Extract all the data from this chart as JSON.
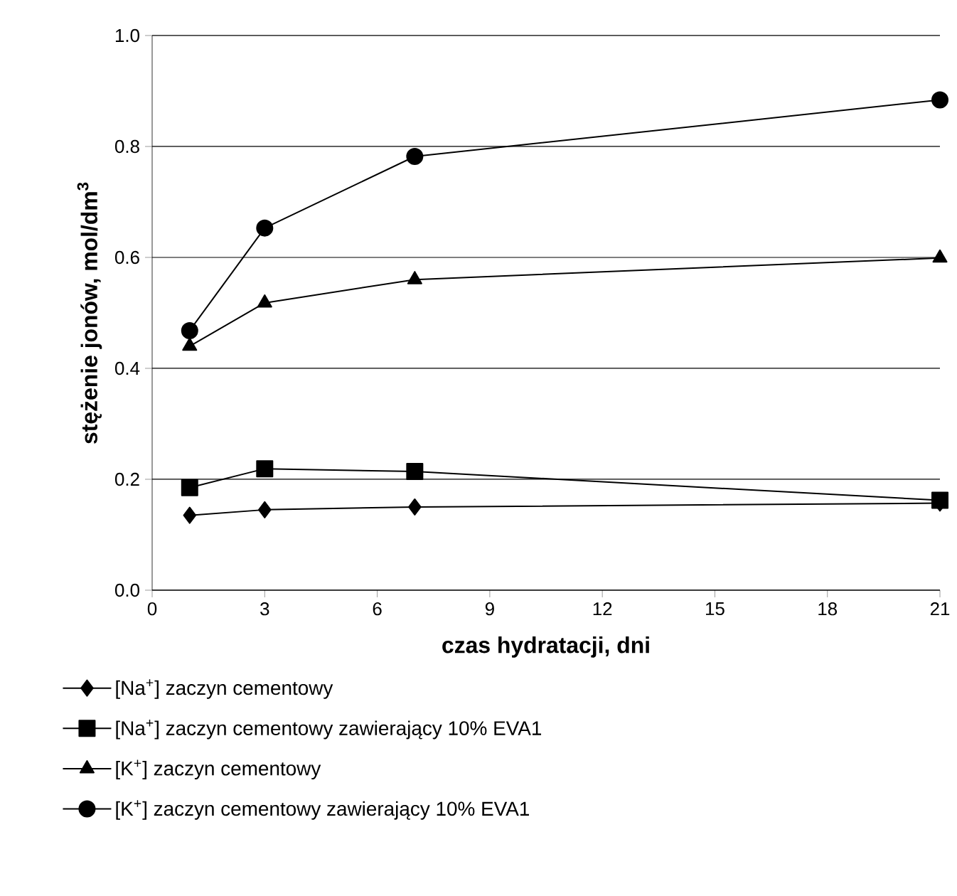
{
  "chart_data": {
    "type": "line",
    "xlabel": "czas hydratacji, dni",
    "ylabel": "stężenie jonów, mol/dm$^{3}$",
    "x": [
      1,
      3,
      7,
      21
    ],
    "series": [
      {
        "name": "[Na$^{+}$] zaczyn cementowy",
        "color": "#000000",
        "marker": "diamond",
        "values": [
          0.135,
          0.145,
          0.15,
          0.157
        ]
      },
      {
        "name": "[Na$^{+}$] zaczyn cementowy zawierający 10% EVA1",
        "color": "#000000",
        "marker": "square",
        "values": [
          0.185,
          0.219,
          0.214,
          0.162
        ]
      },
      {
        "name": "[K$^{+}$] zaczyn cementowy",
        "color": "#000000",
        "marker": "triangle",
        "values": [
          0.44,
          0.518,
          0.56,
          0.599
        ]
      },
      {
        "name": "[K$^{+}$] zaczyn cementowy zawierający 10% EVA1",
        "color": "#000000",
        "marker": "circle",
        "values": [
          0.468,
          0.653,
          0.782,
          0.884
        ]
      }
    ],
    "xlim": [
      0,
      21
    ],
    "xticks": [
      0,
      3,
      6,
      9,
      12,
      15,
      18,
      21
    ],
    "ylim": [
      0,
      1
    ],
    "yticks": [
      {
        "value": 0,
        "label": "0.0"
      },
      {
        "value": 0.2,
        "label": "0.2"
      },
      {
        "value": 0.4,
        "label": "0.4"
      },
      {
        "value": 0.6,
        "label": "0.6"
      },
      {
        "value": 0.8,
        "label": "0.8"
      },
      {
        "value": 1,
        "label": "1.0"
      }
    ],
    "grid": "y",
    "legend": "bottom",
    "line_style": "solid"
  }
}
